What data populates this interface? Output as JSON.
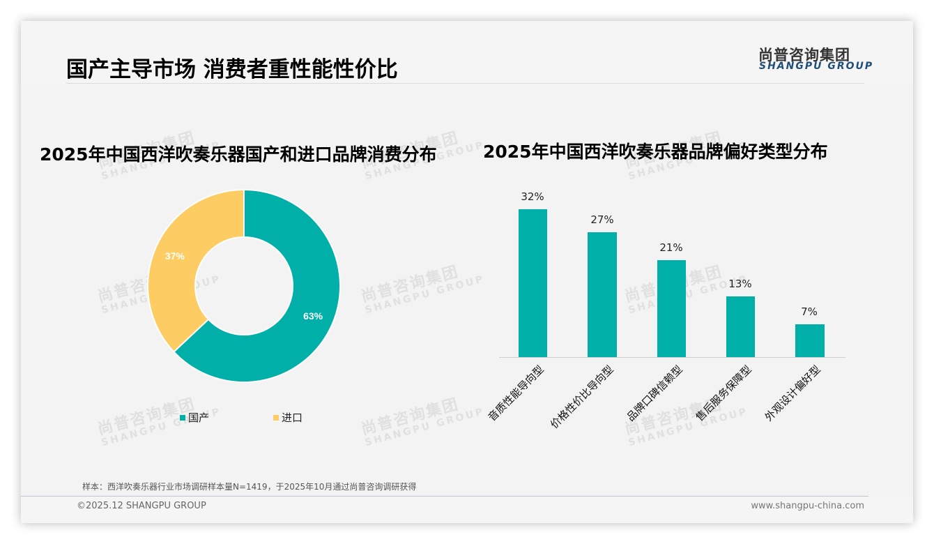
{
  "header": {
    "title": "国产主导市场 消费者重性能性价比",
    "logo_cn": "尚普咨询集团",
    "logo_en": "SHANGPU GROUP"
  },
  "watermark": {
    "cn": "尚普咨询集团",
    "en": "SHANGPU GROUP"
  },
  "colors": {
    "teal": "#00B0A8",
    "yellow": "#FDCD64",
    "brand_blue": "#1F4E79"
  },
  "left_chart": {
    "title": "2025年中国西洋吹奏乐器国产和进口品牌消费分布",
    "legend": [
      {
        "label": "国产",
        "color": "#00B0A8"
      },
      {
        "label": "进口",
        "color": "#FDCD64"
      }
    ],
    "slice_labels": [
      "63%",
      "37%"
    ]
  },
  "right_chart": {
    "title": "2025年中国西洋吹奏乐器品牌偏好类型分布",
    "bar_labels": [
      "32%",
      "27%",
      "21%",
      "13%",
      "7%"
    ],
    "categories": [
      "音质性能导向型",
      "价格性价比导向型",
      "品牌口碑信赖型",
      "售后服务保障型",
      "外观设计偏好型"
    ]
  },
  "chart_data": [
    {
      "type": "pie",
      "subtype": "donut",
      "title": "2025年中国西洋吹奏乐器国产和进口品牌消费分布",
      "categories": [
        "国产",
        "进口"
      ],
      "values": [
        63,
        37
      ],
      "unit": "%",
      "colors": [
        "#00B0A8",
        "#FDCD64"
      ],
      "legend_position": "bottom"
    },
    {
      "type": "bar",
      "title": "2025年中国西洋吹奏乐器品牌偏好类型分布",
      "categories": [
        "音质性能导向型",
        "价格性价比导向型",
        "品牌口碑信赖型",
        "售后服务保障型",
        "外观设计偏好型"
      ],
      "values": [
        32,
        27,
        21,
        13,
        7
      ],
      "unit": "%",
      "xlabel": "",
      "ylabel": "",
      "ylim": [
        0,
        35
      ],
      "grid": false,
      "data_labels": true,
      "color": "#00B0A8"
    }
  ],
  "footer": {
    "note": "样本：西洋吹奏乐器行业市场调研样本量N=1419，于2025年10月通过尚普咨询调研获得",
    "copyright": "©2025.12 SHANGPU GROUP",
    "website": "www.shangpu-china.com"
  }
}
